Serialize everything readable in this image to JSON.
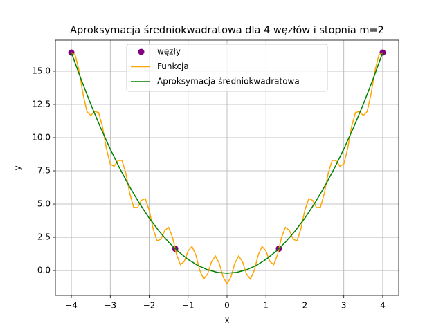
{
  "chart_data": {
    "type": "line",
    "title": "Aproksymacja średniokwadratowa dla 4 węzłów i stopnia m=2",
    "xlabel": "x",
    "ylabel": "y",
    "xlim": [
      -4.41,
      4.41
    ],
    "ylim": [
      -1.87,
      17.34
    ],
    "xticks": [
      {
        "value": -4,
        "label": "−4"
      },
      {
        "value": -3,
        "label": "−3"
      },
      {
        "value": -2,
        "label": "−2"
      },
      {
        "value": -1,
        "label": "−1"
      },
      0,
      1,
      2,
      3,
      4
    ],
    "yticks": [
      {
        "value": 0,
        "label": "0.0"
      },
      {
        "value": 2.5,
        "label": "2.5"
      },
      {
        "value": 5,
        "label": "5.0"
      },
      {
        "value": 7.5,
        "label": "7.5"
      },
      {
        "value": 10,
        "label": "10.0"
      },
      {
        "value": 12.5,
        "label": "12.5"
      },
      {
        "value": 15,
        "label": "15.0"
      }
    ],
    "grid": true,
    "legend": "upper center",
    "series": [
      {
        "name": "węzły",
        "type": "scatter",
        "color": "purple",
        "x": [
          -4,
          -1.333,
          1.333,
          4
        ],
        "values": [
          16.4,
          1.641,
          1.641,
          16.4
        ]
      },
      {
        "name": "Funkcja",
        "type": "line",
        "color": "orange",
        "x": [
          -4,
          -3.9,
          -3.8,
          -3.7,
          -3.6,
          -3.5,
          -3.4,
          -3.3,
          -3.2,
          -3.1,
          -3,
          -2.9,
          -2.8,
          -2.7,
          -2.6,
          -2.5,
          -2.4,
          -2.3,
          -2.2,
          -2.1,
          -2,
          -1.9,
          -1.8,
          -1.7,
          -1.6,
          -1.5,
          -1.4,
          -1.3,
          -1.2,
          -1.1,
          -1,
          -0.9,
          -0.8,
          -0.7,
          -0.6,
          -0.5,
          -0.4,
          -0.3,
          -0.2,
          -0.1,
          0,
          0.1,
          0.2,
          0.3,
          0.4,
          0.5,
          0.6,
          0.7,
          0.8,
          0.9,
          1,
          1.1,
          1.2,
          1.3,
          1.4,
          1.5,
          1.6,
          1.7,
          1.8,
          1.9,
          2,
          2.1,
          2.2,
          2.3,
          2.4,
          2.5,
          2.6,
          2.7,
          2.8,
          2.9,
          3,
          3.1,
          3.2,
          3.3,
          3.4,
          3.5,
          3.6,
          3.7,
          3.8,
          3.9,
          4
        ],
        "values": [
          16.4,
          16.204,
          15.029,
          13.281,
          11.965,
          11.667,
          11.977,
          11.886,
          10.816,
          9.186,
          8.003,
          7.841,
          8.272,
          8.287,
          7.322,
          5.811,
          4.762,
          4.735,
          5.286,
          5.408,
          4.548,
          3.156,
          2.241,
          2.349,
          3.021,
          3.249,
          2.494,
          1.222,
          0.441,
          0.684,
          1.476,
          1.81,
          1.159,
          0.007,
          -0.64,
          -0.262,
          0.65,
          1.09,
          0.545,
          -0.488,
          -1,
          -0.488,
          0.545,
          1.09,
          0.65,
          -0.262,
          -0.64,
          0.007,
          1.159,
          1.81,
          1.476,
          0.684,
          0.441,
          1.222,
          2.494,
          3.249,
          3.021,
          2.349,
          2.241,
          3.156,
          4.548,
          5.408,
          5.286,
          4.735,
          4.762,
          5.811,
          7.322,
          8.287,
          8.272,
          7.841,
          8.003,
          9.186,
          10.816,
          11.886,
          11.977,
          11.667,
          11.965,
          13.281,
          15.029,
          16.204,
          16.4
        ]
      },
      {
        "name": "Aproksymacja średniokwadratowa",
        "type": "line",
        "color": "green",
        "x": [
          -4,
          -3.75,
          -3.5,
          -3.25,
          -3,
          -2.75,
          -2.5,
          -2.25,
          -2,
          -1.75,
          -1.5,
          -1.25,
          -1,
          -0.75,
          -0.5,
          -0.25,
          0,
          0.25,
          0.5,
          0.75,
          1,
          1.25,
          1.5,
          1.75,
          2,
          2.25,
          2.5,
          2.75,
          3,
          3.25,
          3.5,
          3.75,
          4
        ],
        "values": [
          16.4,
          14.389,
          12.509,
          10.757,
          9.136,
          7.644,
          6.282,
          5.05,
          3.947,
          2.974,
          2.131,
          1.418,
          0.834,
          0.38,
          0.056,
          -0.139,
          -0.204,
          -0.139,
          0.056,
          0.38,
          0.834,
          1.418,
          2.131,
          2.974,
          3.947,
          5.05,
          6.282,
          7.644,
          9.136,
          10.757,
          12.509,
          14.389,
          16.4
        ]
      }
    ]
  }
}
